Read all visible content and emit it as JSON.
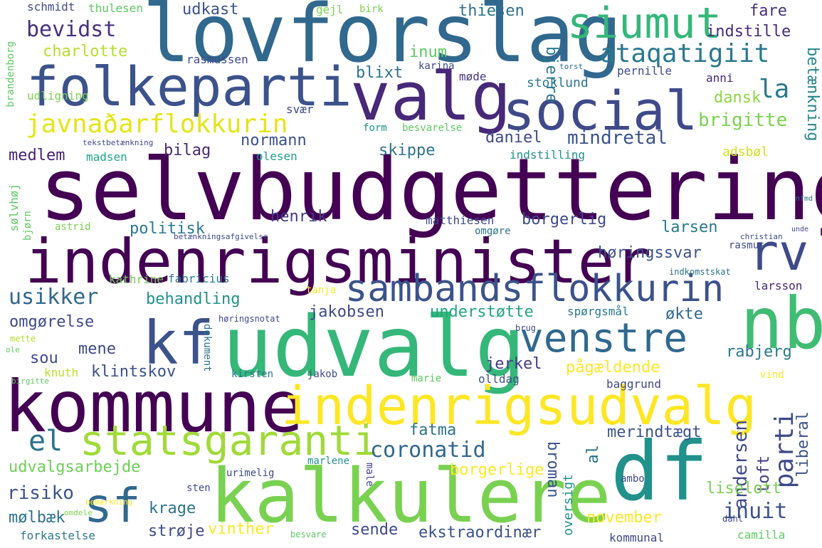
{
  "palette": [
    "#440154",
    "#3b528b",
    "#21918c",
    "#5ec962",
    "#fde725"
  ],
  "words": [
    {
      "text": "selvbudgettering",
      "color": "#440154"
    },
    {
      "text": "lovforslag",
      "color": "#31688e"
    },
    {
      "text": "valg",
      "color": "#482878"
    },
    {
      "text": "social",
      "color": "#3e4a89"
    },
    {
      "text": "folkeparti",
      "color": "#3b528b"
    },
    {
      "text": "siumut",
      "color": "#35b779"
    },
    {
      "text": "indenrigsminister",
      "color": "#440154"
    },
    {
      "text": "rv",
      "color": "#3e4a89"
    },
    {
      "text": "sambandsflokkurin",
      "color": "#3b528b"
    },
    {
      "text": "udvalg",
      "color": "#35b779"
    },
    {
      "text": "nb",
      "color": "#3fbc73"
    },
    {
      "text": "kf",
      "color": "#3b528b"
    },
    {
      "text": "venstre",
      "color": "#31688e"
    },
    {
      "text": "kommune",
      "color": "#440154"
    },
    {
      "text": "indenrigsudvalg",
      "color": "#fde725"
    },
    {
      "text": "statsgaranti",
      "color": "#a0da39"
    },
    {
      "text": "df",
      "color": "#21918c"
    },
    {
      "text": "kalkulere",
      "color": "#7ad151"
    },
    {
      "text": "sf",
      "color": "#31688e"
    },
    {
      "text": "javnaðarflokkurin",
      "color": "#e5e419"
    },
    {
      "text": "ataqatigiit",
      "color": "#2a788e"
    },
    {
      "text": "bevidst",
      "color": "#46327e"
    },
    {
      "text": "charlotte",
      "color": "#b5de2b"
    },
    {
      "text": "la",
      "color": "#2a788e"
    },
    {
      "text": "indstille",
      "color": "#472d7b"
    },
    {
      "text": "fare",
      "color": "#46327e"
    },
    {
      "text": "udkast",
      "color": "#3b528b"
    },
    {
      "text": "thiesen",
      "color": "#2c728e"
    },
    {
      "text": "inum",
      "color": "#5ec962"
    },
    {
      "text": "blixt",
      "color": "#2c728e"
    },
    {
      "text": "bjerre",
      "color": "#2a788e"
    },
    {
      "text": "karina",
      "color": "#3e4a89"
    },
    {
      "text": "dansk",
      "color": "#8fd744"
    },
    {
      "text": "brigitte",
      "color": "#7ad151"
    },
    {
      "text": "betænkning",
      "color": "#25858e"
    },
    {
      "text": "møde",
      "color": "#443983"
    },
    {
      "text": "stoklund",
      "color": "#2a788e"
    },
    {
      "text": "pernille",
      "color": "#3e4a89"
    },
    {
      "text": "anni",
      "color": "#482878"
    },
    {
      "text": "rasmussen",
      "color": "#3e4a89"
    },
    {
      "text": "medlem",
      "color": "#482173"
    },
    {
      "text": "normann",
      "color": "#3b528b"
    },
    {
      "text": "bilag",
      "color": "#482878"
    },
    {
      "text": "daniel",
      "color": "#3e4a89"
    },
    {
      "text": "mindretal",
      "color": "#3b528b"
    },
    {
      "text": "skippe",
      "color": "#2c728e"
    },
    {
      "text": "indstilling",
      "color": "#21918c"
    },
    {
      "text": "adsbøl",
      "color": "#d2e21b"
    },
    {
      "text": "madsen",
      "color": "#20a486"
    },
    {
      "text": "olesen",
      "color": "#1f9e89"
    },
    {
      "text": "henrik",
      "color": "#443983"
    },
    {
      "text": "politisk",
      "color": "#2a788e"
    },
    {
      "text": "borgerlig",
      "color": "#3e4a89"
    },
    {
      "text": "larsen",
      "color": "#2a788e"
    },
    {
      "text": "høringssvar",
      "color": "#3b528b"
    },
    {
      "text": "matthiesen",
      "color": "#3e4a89"
    },
    {
      "text": "omgøre",
      "color": "#2c728e"
    },
    {
      "text": "usikker",
      "color": "#31688e"
    },
    {
      "text": "behandling",
      "color": "#21918c"
    },
    {
      "text": "fabricius",
      "color": "#2a788e"
    },
    {
      "text": "kathrine",
      "color": "#6ece58"
    },
    {
      "text": "omgørelse",
      "color": "#3e4a89"
    },
    {
      "text": "jakobsen",
      "color": "#3e4a89"
    },
    {
      "text": "understøtte",
      "color": "#21a585"
    },
    {
      "text": "spørgsmål",
      "color": "#2a788e"
    },
    {
      "text": "økte",
      "color": "#31688e"
    },
    {
      "text": "larsson",
      "color": "#482878"
    },
    {
      "text": "sou",
      "color": "#3e4a89"
    },
    {
      "text": "mene",
      "color": "#3e4a89"
    },
    {
      "text": "knuth",
      "color": "#bddf26"
    },
    {
      "text": "klintskov",
      "color": "#3b528b"
    },
    {
      "text": "jerkel",
      "color": "#443983"
    },
    {
      "text": "pågældende",
      "color": "#fde725"
    },
    {
      "text": "rabjerg",
      "color": "#2a788e"
    },
    {
      "text": "andersen",
      "color": "#3e4a89"
    },
    {
      "text": "el",
      "color": "#2c728e"
    },
    {
      "text": "coronatid",
      "color": "#31688e"
    },
    {
      "text": "fatma",
      "color": "#2c728e"
    },
    {
      "text": "parti",
      "color": "#3e4a89"
    },
    {
      "text": "liberal",
      "color": "#3b528b"
    },
    {
      "text": "toft",
      "color": "#443983"
    },
    {
      "text": "merindtægt",
      "color": "#3b528b"
    },
    {
      "text": "udvalgsarbejde",
      "color": "#6ece58"
    },
    {
      "text": "borgerlige",
      "color": "#fde725"
    },
    {
      "text": "broman",
      "color": "#3b528b"
    },
    {
      "text": "al",
      "color": "#2c728e"
    },
    {
      "text": "risiko",
      "color": "#3b528b"
    },
    {
      "text": "krage",
      "color": "#2c728e"
    },
    {
      "text": "mølbæk",
      "color": "#2c728e"
    },
    {
      "text": "strøje",
      "color": "#3e4a89"
    },
    {
      "text": "vinther",
      "color": "#fde725"
    },
    {
      "text": "sende",
      "color": "#3e4a89"
    },
    {
      "text": "ekstraordinær",
      "color": "#3b528b"
    },
    {
      "text": "november",
      "color": "#fde725"
    },
    {
      "text": "inuit",
      "color": "#3b528b"
    },
    {
      "text": "liselott",
      "color": "#7ad151"
    },
    {
      "text": "forkastelse",
      "color": "#2a788e"
    },
    {
      "text": "kommunal",
      "color": "#3e4a89"
    },
    {
      "text": "camilla",
      "color": "#5ec962"
    },
    {
      "text": "oversigt",
      "color": "#21918c"
    },
    {
      "text": "schmidt",
      "color": "#3e4a89"
    },
    {
      "text": "thulesen",
      "color": "#5ec962"
    },
    {
      "text": "gejl",
      "color": "#7ad151"
    },
    {
      "text": "birk",
      "color": "#7ad151"
    },
    {
      "text": "udligning",
      "color": "#7ad151"
    },
    {
      "text": "form",
      "color": "#21918c"
    },
    {
      "text": "besvarelse",
      "color": "#5ec962"
    },
    {
      "text": "svær",
      "color": "#3e4a89"
    },
    {
      "text": "brandenborg",
      "color": "#5ec962"
    },
    {
      "text": "sølvhøj",
      "color": "#5ec962"
    },
    {
      "text": "bjørn",
      "color": "#5ec962"
    },
    {
      "text": "astrid",
      "color": "#7ad151"
    },
    {
      "text": "tekstbetænkning",
      "color": "#3e4a89"
    },
    {
      "text": "rasmus",
      "color": "#3e4a89"
    },
    {
      "text": "torst",
      "color": "#2c728e"
    },
    {
      "text": "christian",
      "color": "#3e4a89"
    },
    {
      "text": "nfmd",
      "color": "#2c728e"
    },
    {
      "text": "unde",
      "color": "#3e4a89"
    },
    {
      "text": "indkomstskat",
      "color": "#2c728e"
    },
    {
      "text": "tanja",
      "color": "#fde725"
    },
    {
      "text": "høringsnotat",
      "color": "#3e4a89"
    },
    {
      "text": "brug",
      "color": "#3e4a89"
    },
    {
      "text": "mette",
      "color": "#b5de2b"
    },
    {
      "text": "ole",
      "color": "#5ec962"
    },
    {
      "text": "birgitte",
      "color": "#5ec962"
    },
    {
      "text": "dokument",
      "color": "#2c728e"
    },
    {
      "text": "kirsten",
      "color": "#2c728e"
    },
    {
      "text": "jakob",
      "color": "#3e4a89"
    },
    {
      "text": "marie",
      "color": "#5ec962"
    },
    {
      "text": "olldag",
      "color": "#3b528b"
    },
    {
      "text": "baggrund",
      "color": "#3e4a89"
    },
    {
      "text": "vind",
      "color": "#fde725"
    },
    {
      "text": "marlene",
      "color": "#21918c"
    },
    {
      "text": "urimelig",
      "color": "#3e4a89"
    },
    {
      "text": "male",
      "color": "#3e4a89"
    },
    {
      "text": "ambo",
      "color": "#3e4a89"
    },
    {
      "text": "sten",
      "color": "#3e4a89"
    },
    {
      "text": "bemærkning",
      "color": "#fde725"
    },
    {
      "text": "omdele",
      "color": "#7ad151"
    },
    {
      "text": "dahl",
      "color": "#3e4a89"
    },
    {
      "text": "besvare",
      "color": "#5ec962"
    },
    {
      "text": "betænkningsafgivelse",
      "color": "#3e4a89"
    }
  ]
}
